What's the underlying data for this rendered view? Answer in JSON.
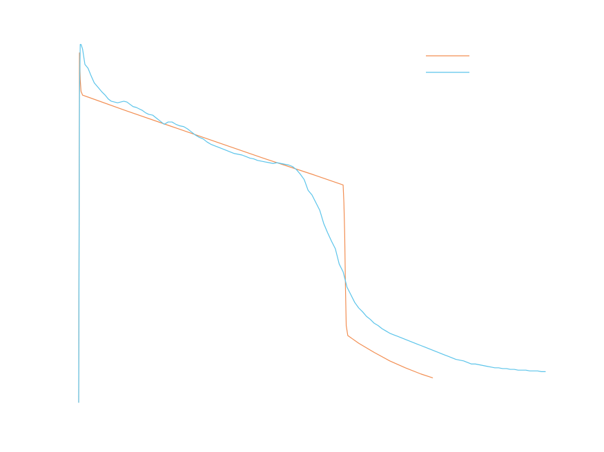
{
  "chart_data": {
    "type": "line",
    "title": "",
    "xlabel": "",
    "ylabel": "",
    "grid": false,
    "axes_visible": false,
    "legend": {
      "placement": "top-right",
      "entries_labeled": false
    },
    "xlim": [
      0,
      600
    ],
    "ylim": [
      0,
      470
    ],
    "series": [
      {
        "color": "#f28e52",
        "x": [
          0,
          1,
          2,
          3,
          5,
          60,
          120,
          180,
          240,
          300,
          340,
          341,
          342,
          343,
          344,
          346,
          360,
          380,
          400,
          420,
          440,
          455
        ],
        "y": [
          0,
          455,
          420,
          405,
          400,
          380,
          359,
          338,
          317,
          297,
          283,
          260,
          220,
          150,
          100,
          87,
          77,
          65,
          54,
          45,
          37,
          32
        ]
      },
      {
        "color": "#5bc4ea",
        "x": [
          0,
          0.5,
          1,
          2,
          3,
          5,
          8,
          12,
          16,
          20,
          25,
          30,
          34,
          38,
          42,
          46,
          50,
          54,
          58,
          62,
          66,
          70,
          74,
          78,
          82,
          86,
          90,
          95,
          100,
          105,
          110,
          115,
          120,
          125,
          130,
          135,
          140,
          145,
          150,
          155,
          160,
          165,
          170,
          175,
          180,
          185,
          190,
          195,
          200,
          205,
          210,
          215,
          220,
          225,
          230,
          235,
          240,
          245,
          250,
          255,
          260,
          265,
          270,
          275,
          280,
          285,
          290,
          295,
          300,
          305,
          310,
          315,
          320,
          325,
          330,
          335,
          340,
          345,
          350,
          355,
          360,
          365,
          370,
          375,
          380,
          385,
          390,
          395,
          400,
          405,
          410,
          415,
          420,
          425,
          430,
          435,
          440,
          445,
          450,
          455,
          460,
          465,
          470,
          475,
          480,
          485,
          490,
          495,
          500,
          505,
          510,
          515,
          520,
          525,
          530,
          535,
          540,
          545,
          550,
          555,
          560,
          565,
          570,
          575,
          580,
          585,
          590,
          595,
          600
        ],
        "y": [
          0,
          200,
          400,
          466,
          466,
          460,
          440,
          435,
          425,
          416,
          410,
          404,
          400,
          395,
          392,
          391,
          390,
          391,
          392,
          391,
          388,
          385,
          384,
          382,
          380,
          377,
          375,
          374,
          370,
          366,
          362,
          365,
          365,
          362,
          360,
          359,
          356,
          352,
          348,
          345,
          343,
          339,
          336,
          334,
          332,
          330,
          328,
          326,
          324,
          323,
          322,
          320,
          318,
          317,
          315,
          314,
          313,
          312,
          311,
          312,
          311,
          310,
          309,
          307,
          303,
          297,
          290,
          276,
          270,
          260,
          250,
          233,
          221,
          210,
          200,
          180,
          170,
          150,
          140,
          130,
          123,
          118,
          112,
          108,
          103,
          100,
          96,
          93,
          90,
          88,
          86,
          84,
          82,
          80,
          78,
          76,
          74,
          72,
          70,
          68,
          66,
          64,
          62,
          60,
          58,
          56,
          55,
          54,
          52,
          50,
          50,
          49,
          48,
          47,
          46,
          45,
          45,
          44,
          44,
          43,
          43,
          42,
          42,
          42,
          41,
          41,
          41,
          40,
          40
        ]
      }
    ]
  }
}
